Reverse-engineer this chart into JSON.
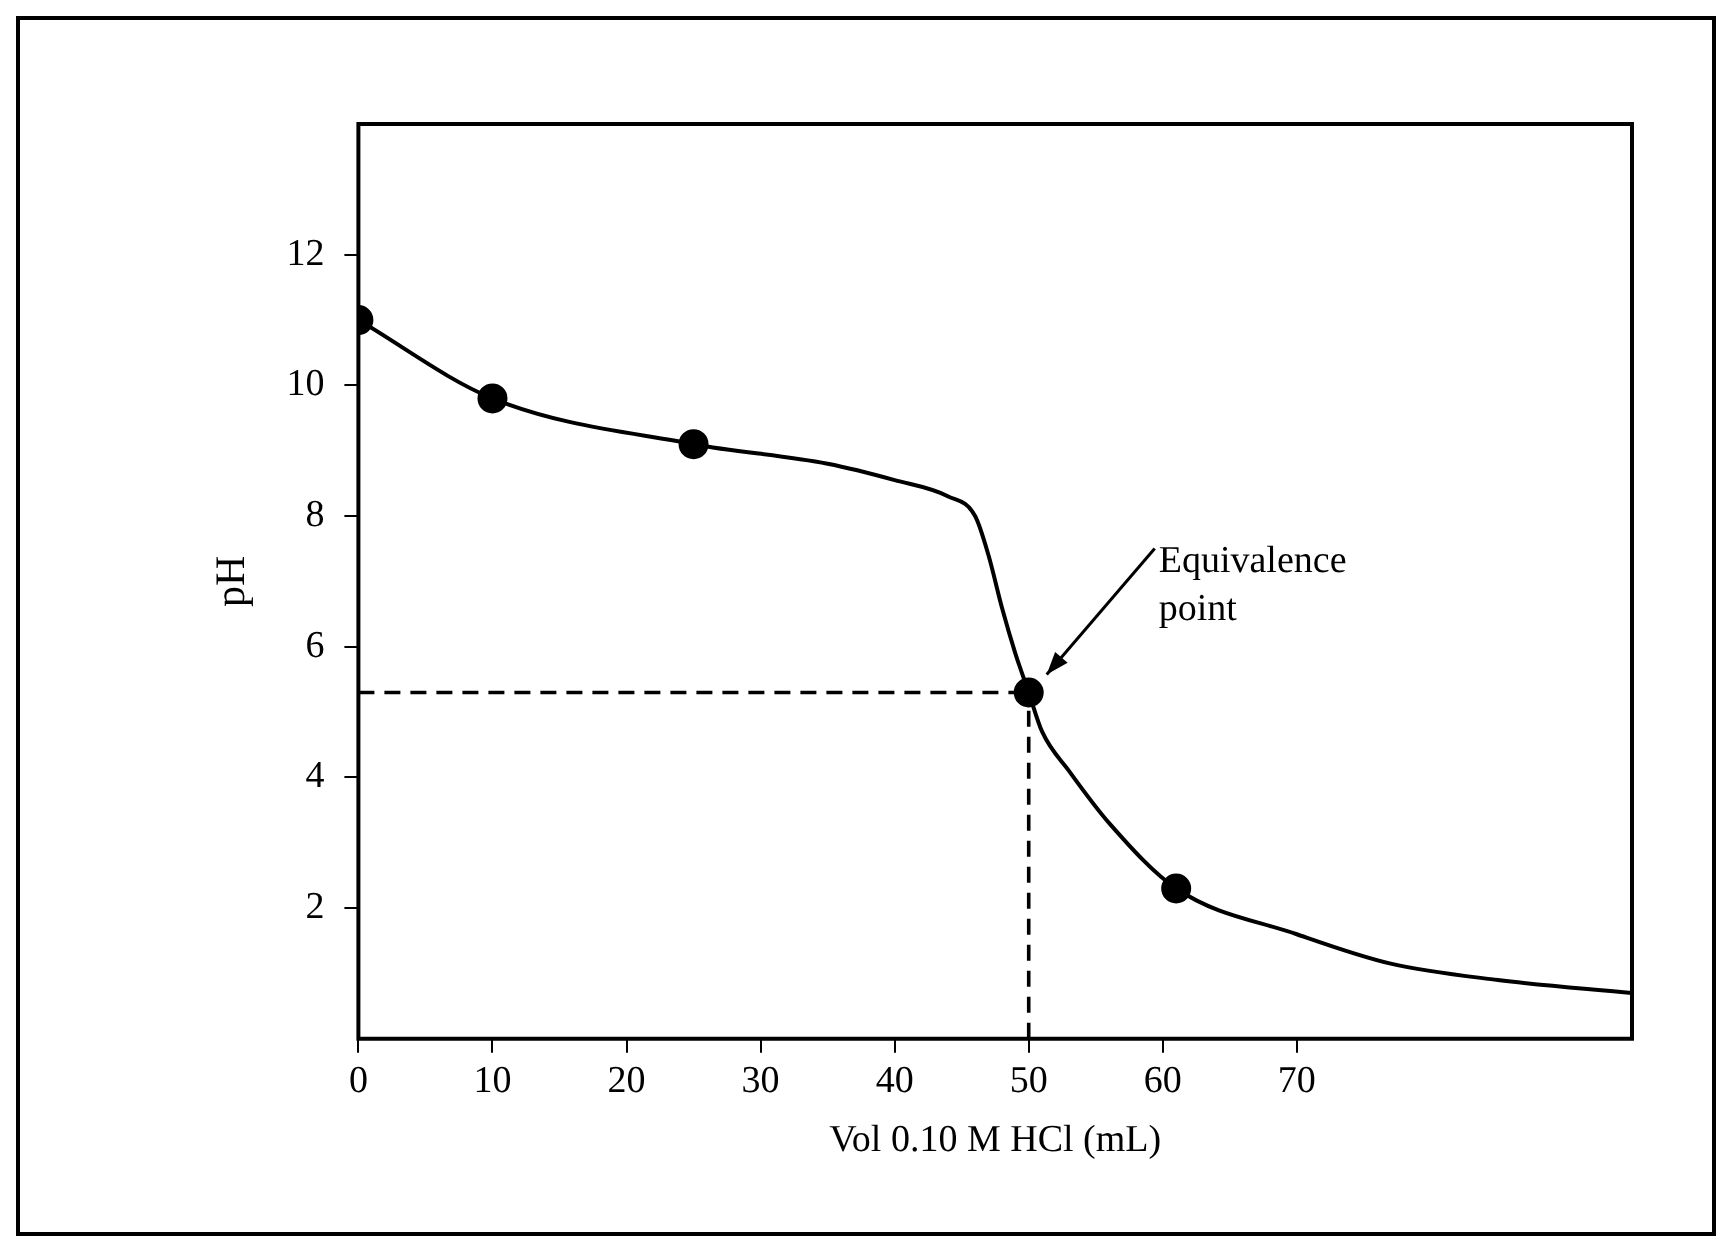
{
  "chart_data": {
    "type": "line",
    "xlabel": "Vol 0.10 M HCl (mL)",
    "ylabel": "pH",
    "xlim": [
      0,
      95
    ],
    "xticks": [
      0,
      10,
      20,
      30,
      40,
      50,
      60,
      70
    ],
    "ylim": [
      0,
      14
    ],
    "yticks": [
      2,
      4,
      6,
      8,
      10,
      12
    ],
    "series": [
      {
        "type": "line",
        "color": "#000000",
        "marker": "none",
        "line_style": "solid",
        "x": [
          0,
          10,
          25,
          35,
          40,
          44,
          46,
          47,
          48,
          49,
          50,
          51,
          53,
          56,
          61,
          70,
          77,
          85,
          95
        ],
        "values": [
          11,
          9.8,
          9.1,
          8.8,
          8.55,
          8.3,
          8.0,
          7.4,
          6.6,
          5.9,
          5.3,
          4.7,
          4.1,
          3.3,
          2.3,
          1.6,
          1.15,
          0.9,
          0.7
        ]
      },
      {
        "type": "scatter",
        "color": "#000000",
        "marker": "circle",
        "x": [
          0,
          10,
          25,
          50,
          61
        ],
        "values": [
          11,
          9.8,
          9.1,
          5.3,
          2.3
        ]
      }
    ],
    "ref_lines": [
      {
        "axis": "y",
        "value": 5.3,
        "color": "#000000",
        "line_style": "dashed"
      },
      {
        "axis": "x",
        "value": 50,
        "color": "#000000",
        "line_style": "dashed"
      }
    ],
    "annotations": [
      "Equivalence point"
    ],
    "grid": false,
    "legend": false
  }
}
